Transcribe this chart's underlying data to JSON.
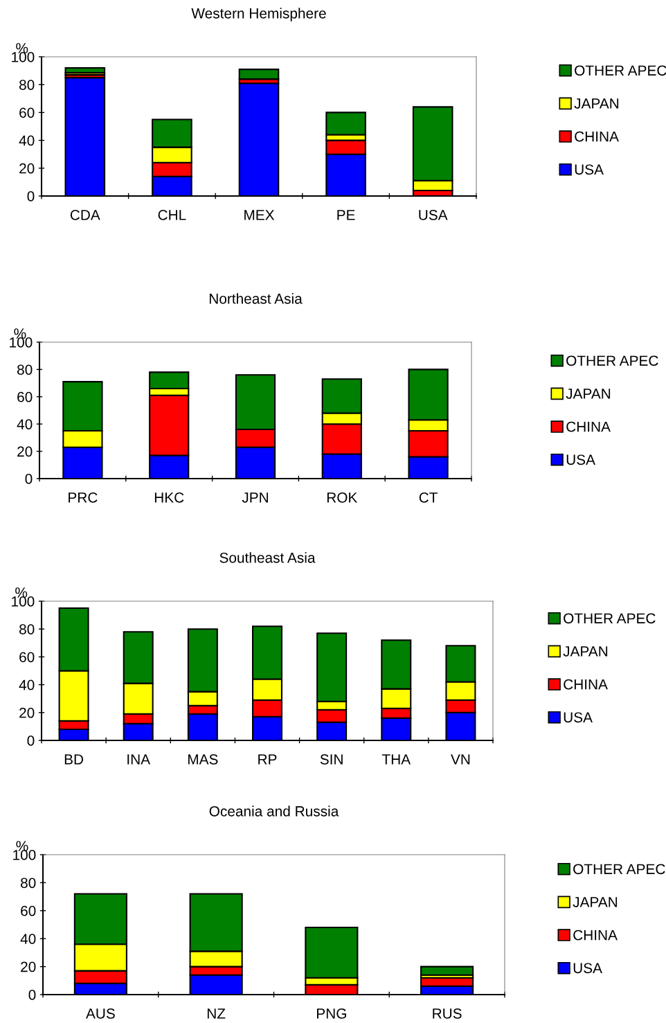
{
  "chart_data": [
    {
      "type": "bar",
      "title": "Western Hemisphere",
      "ylabel": "%",
      "stacked": true,
      "legend": "right",
      "grid": false,
      "ylim": [
        0,
        100
      ],
      "yticks": [
        0,
        20,
        40,
        60,
        80,
        100
      ],
      "categories": [
        "CDA",
        "CHL",
        "MEX",
        "PE",
        "USA"
      ],
      "series": [
        {
          "name": "USA",
          "color": "#0000ff",
          "values": [
            85,
            14,
            81,
            30,
            0
          ]
        },
        {
          "name": "CHINA",
          "color": "#ff0000",
          "values": [
            2,
            10,
            3,
            10,
            4
          ]
        },
        {
          "name": "JAPAN",
          "color": "#ffff00",
          "values": [
            1.5,
            11,
            null,
            4,
            7
          ]
        },
        {
          "name": "OTHER APEC",
          "color": "#008000",
          "values": [
            3.5,
            20,
            7,
            16,
            53
          ]
        }
      ]
    },
    {
      "type": "bar",
      "title": "Northeast Asia",
      "ylabel": "%",
      "stacked": true,
      "legend": "right",
      "grid": false,
      "ylim": [
        0,
        100
      ],
      "yticks": [
        0,
        20,
        40,
        60,
        80,
        100
      ],
      "categories": [
        "PRC",
        "HKC",
        "JPN",
        "ROK",
        "CT"
      ],
      "series": [
        {
          "name": "USA",
          "color": "#0000ff",
          "values": [
            23,
            17,
            23,
            18,
            16
          ]
        },
        {
          "name": "CHINA",
          "color": "#ff0000",
          "values": [
            0,
            44,
            13,
            22,
            19
          ]
        },
        {
          "name": "JAPAN",
          "color": "#ffff00",
          "values": [
            12,
            5,
            0,
            8,
            8
          ]
        },
        {
          "name": "OTHER APEC",
          "color": "#008000",
          "values": [
            36,
            12,
            40,
            25,
            37
          ]
        }
      ]
    },
    {
      "type": "bar",
      "title": "Southeast Asia",
      "ylabel": "%",
      "stacked": true,
      "legend": "right",
      "grid": false,
      "ylim": [
        0,
        100
      ],
      "yticks": [
        0,
        20,
        40,
        60,
        80,
        100
      ],
      "categories": [
        "BD",
        "INA",
        "MAS",
        "RP",
        "SIN",
        "THA",
        "VN"
      ],
      "series": [
        {
          "name": "USA",
          "color": "#0000ff",
          "values": [
            8,
            12,
            19,
            17,
            13,
            16,
            20
          ]
        },
        {
          "name": "CHINA",
          "color": "#ff0000",
          "values": [
            6,
            7,
            6,
            12,
            9,
            7,
            9
          ]
        },
        {
          "name": "JAPAN",
          "color": "#ffff00",
          "values": [
            36,
            22,
            10,
            15,
            6,
            14,
            13
          ]
        },
        {
          "name": "OTHER APEC",
          "color": "#008000",
          "values": [
            45,
            37,
            45,
            38,
            49,
            35,
            26
          ]
        }
      ]
    },
    {
      "type": "bar",
      "title": "Oceania and Russia",
      "ylabel": "%",
      "stacked": true,
      "legend": "right",
      "grid": false,
      "ylim": [
        0,
        100
      ],
      "yticks": [
        0,
        20,
        40,
        60,
        80,
        100
      ],
      "categories": [
        "AUS",
        "NZ",
        "PNG",
        "RUS"
      ],
      "series": [
        {
          "name": "USA",
          "color": "#0000ff",
          "values": [
            8,
            14,
            null,
            6
          ]
        },
        {
          "name": "CHINA",
          "color": "#ff0000",
          "values": [
            9,
            6,
            7,
            6
          ]
        },
        {
          "name": "JAPAN",
          "color": "#ffff00",
          "values": [
            19,
            11,
            5,
            2
          ]
        },
        {
          "name": "OTHER APEC",
          "color": "#008000",
          "values": [
            36,
            41,
            36,
            6
          ]
        }
      ]
    }
  ]
}
